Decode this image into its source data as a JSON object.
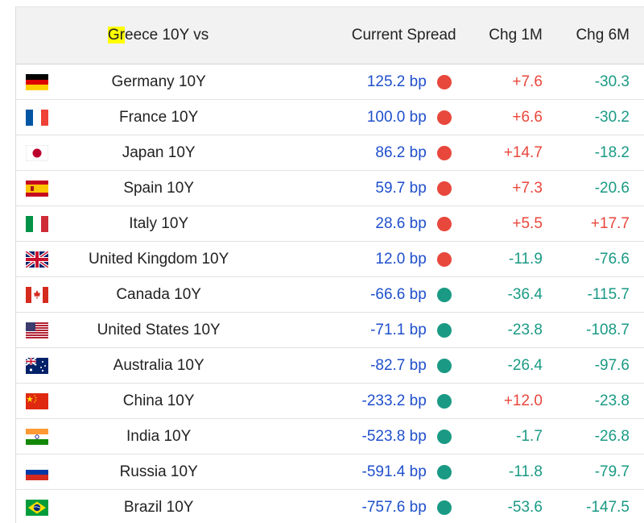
{
  "header": {
    "name_prefix": "Gr",
    "name_rest": "eece 10Y vs",
    "spread": "Current Spread",
    "chg1m": "Chg 1M",
    "chg6m": "Chg 6M"
  },
  "colors": {
    "up": "#e8473c",
    "down": "#1a9a84",
    "spread_text": "#1f4fcc",
    "highlight": "#ffff00"
  },
  "rows": [
    {
      "flag": "germany-flag",
      "name": "Germany 10Y",
      "spread": "125.2 bp",
      "status": "up",
      "chg1m": "+7.6",
      "chg1m_dir": "up",
      "chg6m": "-30.3",
      "chg6m_dir": "down"
    },
    {
      "flag": "france-flag",
      "name": "France 10Y",
      "spread": "100.0 bp",
      "status": "up",
      "chg1m": "+6.6",
      "chg1m_dir": "up",
      "chg6m": "-30.2",
      "chg6m_dir": "down"
    },
    {
      "flag": "japan-flag",
      "name": "Japan 10Y",
      "spread": "86.2 bp",
      "status": "up",
      "chg1m": "+14.7",
      "chg1m_dir": "up",
      "chg6m": "-18.2",
      "chg6m_dir": "down"
    },
    {
      "flag": "spain-flag",
      "name": "Spain 10Y",
      "spread": "59.7 bp",
      "status": "up",
      "chg1m": "+7.3",
      "chg1m_dir": "up",
      "chg6m": "-20.6",
      "chg6m_dir": "down"
    },
    {
      "flag": "italy-flag",
      "name": "Italy 10Y",
      "spread": "28.6 bp",
      "status": "up",
      "chg1m": "+5.5",
      "chg1m_dir": "up",
      "chg6m": "+17.7",
      "chg6m_dir": "up"
    },
    {
      "flag": "uk-flag",
      "name": "United Kingdom 10Y",
      "spread": "12.0 bp",
      "status": "up",
      "chg1m": "-11.9",
      "chg1m_dir": "down",
      "chg6m": "-76.6",
      "chg6m_dir": "down"
    },
    {
      "flag": "canada-flag",
      "name": "Canada 10Y",
      "spread": "-66.6 bp",
      "status": "down",
      "chg1m": "-36.4",
      "chg1m_dir": "down",
      "chg6m": "-115.7",
      "chg6m_dir": "down"
    },
    {
      "flag": "usa-flag",
      "name": "United States 10Y",
      "spread": "-71.1 bp",
      "status": "down",
      "chg1m": "-23.8",
      "chg1m_dir": "down",
      "chg6m": "-108.7",
      "chg6m_dir": "down"
    },
    {
      "flag": "australia-flag",
      "name": "Australia 10Y",
      "spread": "-82.7 bp",
      "status": "down",
      "chg1m": "-26.4",
      "chg1m_dir": "down",
      "chg6m": "-97.6",
      "chg6m_dir": "down"
    },
    {
      "flag": "china-flag",
      "name": "China 10Y",
      "spread": "-233.2 bp",
      "status": "down",
      "chg1m": "+12.0",
      "chg1m_dir": "up",
      "chg6m": "-23.8",
      "chg6m_dir": "down"
    },
    {
      "flag": "india-flag",
      "name": "India 10Y",
      "spread": "-523.8 bp",
      "status": "down",
      "chg1m": "-1.7",
      "chg1m_dir": "down",
      "chg6m": "-26.8",
      "chg6m_dir": "down"
    },
    {
      "flag": "russia-flag",
      "name": "Russia 10Y",
      "spread": "-591.4 bp",
      "status": "down",
      "chg1m": "-11.8",
      "chg1m_dir": "down",
      "chg6m": "-79.7",
      "chg6m_dir": "down"
    },
    {
      "flag": "brazil-flag",
      "name": "Brazil 10Y",
      "spread": "-757.6 bp",
      "status": "down",
      "chg1m": "-53.6",
      "chg1m_dir": "down",
      "chg6m": "-147.5",
      "chg6m_dir": "down"
    }
  ]
}
